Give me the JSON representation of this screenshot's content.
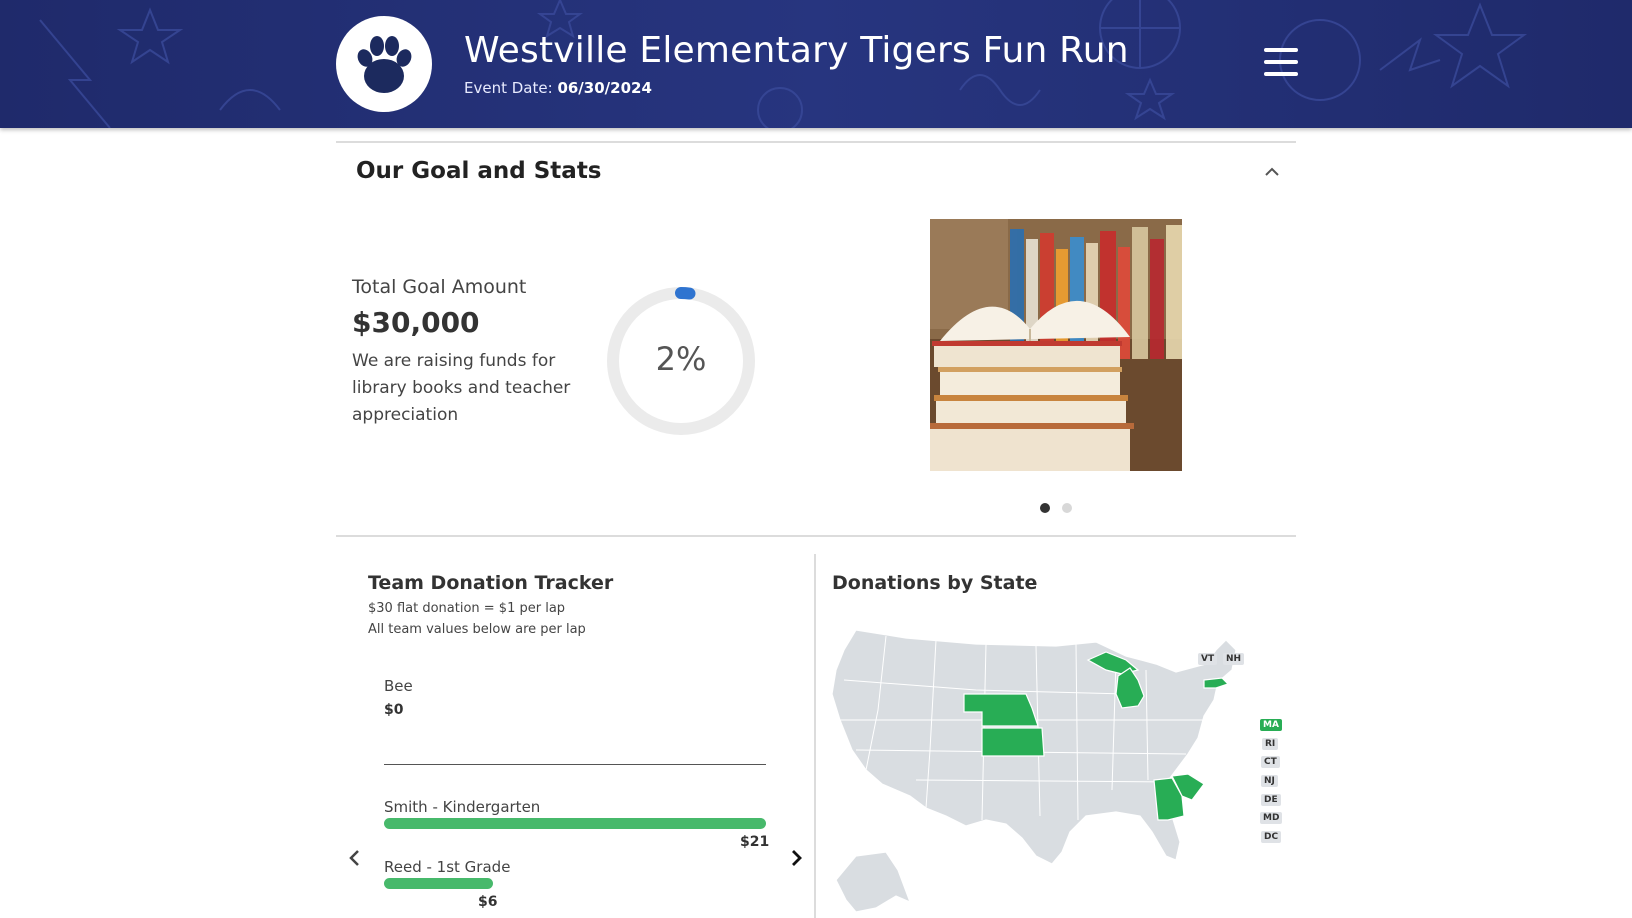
{
  "header": {
    "title": "Westville Elementary Tigers Fun Run",
    "event_date_label": "Event Date:",
    "event_date": "06/30/2024",
    "logo_icon": "paw-print-icon",
    "menu_icon": "hamburger-menu-icon"
  },
  "goal_section": {
    "title": "Our Goal and Stats",
    "collapse_icon": "chevron-up-icon",
    "goal_label": "Total Goal Amount",
    "goal_amount": "$30,000",
    "description": "We are raising funds for library books and teacher appreciation",
    "progress_percent": 2,
    "progress_text": "2%",
    "carousel": {
      "slide_count": 2,
      "active_slide": 1,
      "image": "stack-of-books-photo"
    }
  },
  "tracker": {
    "title": "Team Donation Tracker",
    "subtitle_1": "$30 flat donation = $1 per lap",
    "subtitle_2": "All team values below are per lap",
    "teams": [
      {
        "name": "Bee",
        "value": "$0",
        "amount": 0
      },
      {
        "name": "Smith - Kindergarten",
        "value": "$21",
        "amount": 21
      },
      {
        "name": "Reed - 1st Grade",
        "value": "$6",
        "amount": 6
      }
    ],
    "prev_icon": "chevron-left-icon",
    "next_icon": "chevron-right-icon"
  },
  "map": {
    "title": "Donations by State",
    "highlighted_states": [
      "MI",
      "NE",
      "KS",
      "GA",
      "SC",
      "MA"
    ],
    "small_state_labels": [
      "VT",
      "NH",
      "MA",
      "RI",
      "CT",
      "NJ",
      "DE",
      "MD",
      "DC"
    ],
    "highlight_color": "#28ad55",
    "base_color": "#d9dde1"
  },
  "colors": {
    "header_bg": "#27357f",
    "progress": "#2f74d0",
    "bar": "#47b96b"
  }
}
